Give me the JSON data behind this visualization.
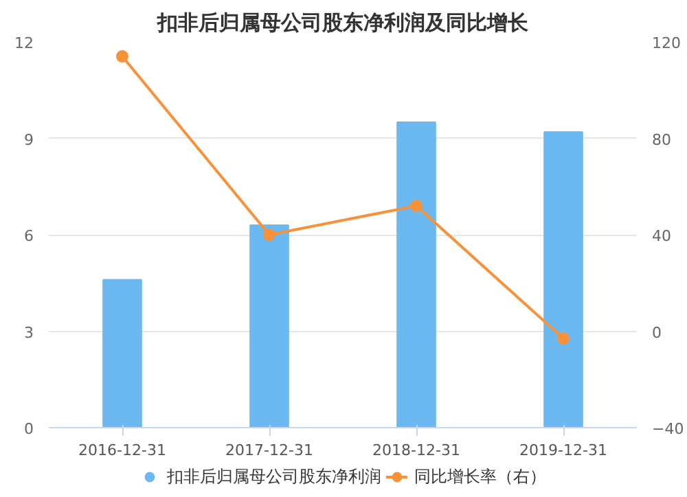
{
  "chart_data": {
    "type": "bar",
    "title": "扣非后归属母公司股东净利润及同比增长",
    "categories": [
      "2016-12-31",
      "2017-12-31",
      "2018-12-31",
      "2019-12-31"
    ],
    "series": [
      {
        "name": "扣非后归属母公司股东净利润",
        "color": "#6cb8f0",
        "values": [
          4.6,
          6.3,
          9.5,
          9.2
        ]
      },
      {
        "name": "同比增长率（右）",
        "color": "#f7913a",
        "type": "line",
        "axis": "y2",
        "values": [
          114,
          40,
          52,
          -3
        ]
      }
    ],
    "ylim": [
      0,
      12
    ],
    "yticks": [
      0,
      3,
      6,
      9,
      12
    ],
    "y2lim": [
      -40,
      120
    ],
    "y2ticks": [
      -40,
      0,
      40,
      80,
      120
    ],
    "grid": "y",
    "legend": "bottom",
    "marker": "circle"
  }
}
